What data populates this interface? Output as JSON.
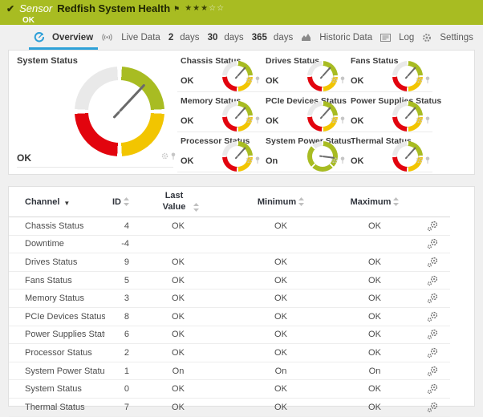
{
  "header": {
    "type_label": "Sensor",
    "title": "Redfish System Health",
    "status": "OK",
    "rating_filled": "★★★",
    "rating_empty": "☆☆"
  },
  "tabs": [
    {
      "strong": "",
      "label": "Overview",
      "icon": "overview-gauge-icon",
      "active": true
    },
    {
      "strong": "",
      "label": "Live Data",
      "icon": "live-data-icon",
      "active": false
    },
    {
      "strong": "2",
      "label": "days",
      "icon": "",
      "active": false
    },
    {
      "strong": "30",
      "label": "days",
      "icon": "",
      "active": false
    },
    {
      "strong": "365",
      "label": "days",
      "icon": "",
      "active": false
    },
    {
      "strong": "",
      "label": "Historic Data",
      "icon": "historic-data-icon",
      "active": false
    },
    {
      "strong": "",
      "label": "Log",
      "icon": "log-icon",
      "active": false
    },
    {
      "strong": "",
      "label": "Settings",
      "icon": "settings-gear-icon",
      "active": false
    }
  ],
  "overview": {
    "system_gauge": {
      "label": "System Status",
      "value": "OK",
      "needle_deg": 43,
      "variant": "status"
    },
    "mini_gauges": [
      {
        "label": "Chassis Status",
        "value": "OK",
        "needle_deg": 42,
        "variant": "status"
      },
      {
        "label": "Drives Status",
        "value": "OK",
        "needle_deg": 42,
        "variant": "status"
      },
      {
        "label": "Fans Status",
        "value": "OK",
        "needle_deg": 42,
        "variant": "status"
      },
      {
        "label": "Memory Status",
        "value": "OK",
        "needle_deg": 42,
        "variant": "status"
      },
      {
        "label": "PCIe Devices Status",
        "value": "OK",
        "needle_deg": 42,
        "variant": "status"
      },
      {
        "label": "Power Supplies Status",
        "value": "OK",
        "needle_deg": 42,
        "variant": "status"
      },
      {
        "label": "Processor Status",
        "value": "OK",
        "needle_deg": 42,
        "variant": "status"
      },
      {
        "label": "System Power Status",
        "value": "On",
        "needle_deg": 97,
        "variant": "power"
      },
      {
        "label": "Thermal Status",
        "value": "OK",
        "needle_deg": 42,
        "variant": "status"
      }
    ],
    "colors": {
      "ok_green": "#a8bc22",
      "warning_yellow": "#f2c500",
      "error_red": "#e2040e",
      "empty_gray": "#e9e9e9",
      "needle_gray": "#6a6a6a"
    }
  },
  "table": {
    "headers": {
      "channel": "Channel",
      "id": "ID",
      "last_value": "Last Value",
      "minimum": "Minimum",
      "maximum": "Maximum"
    },
    "rows": [
      {
        "channel": "Chassis Status",
        "id": "4",
        "last": "OK",
        "min": "OK",
        "max": "OK"
      },
      {
        "channel": "Downtime",
        "id": "-4",
        "last": "",
        "min": "",
        "max": ""
      },
      {
        "channel": "Drives Status",
        "id": "9",
        "last": "OK",
        "min": "OK",
        "max": "OK"
      },
      {
        "channel": "Fans Status",
        "id": "5",
        "last": "OK",
        "min": "OK",
        "max": "OK"
      },
      {
        "channel": "Memory Status",
        "id": "3",
        "last": "OK",
        "min": "OK",
        "max": "OK"
      },
      {
        "channel": "PCIe Devices Status",
        "id": "8",
        "last": "OK",
        "min": "OK",
        "max": "OK"
      },
      {
        "channel": "Power Supplies Status",
        "id": "6",
        "last": "OK",
        "min": "OK",
        "max": "OK"
      },
      {
        "channel": "Processor Status",
        "id": "2",
        "last": "OK",
        "min": "OK",
        "max": "OK"
      },
      {
        "channel": "System Power Status",
        "id": "1",
        "last": "On",
        "min": "On",
        "max": "On"
      },
      {
        "channel": "System Status",
        "id": "0",
        "last": "OK",
        "min": "OK",
        "max": "OK"
      },
      {
        "channel": "Thermal Status",
        "id": "7",
        "last": "OK",
        "min": "OK",
        "max": "OK"
      }
    ]
  }
}
